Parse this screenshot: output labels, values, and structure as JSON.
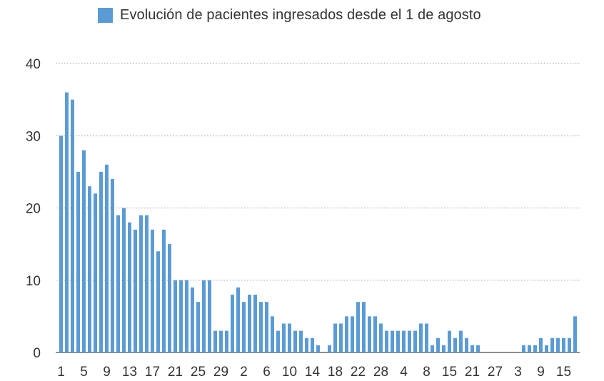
{
  "chart_data": {
    "type": "bar",
    "title": "",
    "xlabel": "",
    "ylabel": "",
    "ylim": [
      0,
      40
    ],
    "yticks": [
      0,
      10,
      20,
      30,
      40
    ],
    "grid": true,
    "legend_position": "top",
    "bar_color": "#5b9bd5",
    "series": [
      {
        "name": "Evolución de pacientes ingresados desde el 1 de agosto",
        "values": [
          30,
          36,
          35,
          25,
          28,
          23,
          22,
          25,
          26,
          24,
          19,
          20,
          18,
          17,
          19,
          19,
          17,
          14,
          17,
          15,
          10,
          10,
          10,
          9,
          7,
          10,
          10,
          3,
          3,
          3,
          8,
          9,
          7,
          8,
          8,
          7,
          7,
          5,
          3,
          4,
          4,
          3,
          3,
          2,
          2,
          1,
          0,
          1,
          4,
          4,
          5,
          5,
          7,
          7,
          5,
          5,
          4,
          3,
          3,
          3,
          3,
          3,
          3,
          4,
          4,
          1,
          2,
          1,
          3,
          2,
          3,
          2,
          1,
          1,
          0,
          0,
          0,
          0,
          0,
          0,
          0,
          1,
          1,
          1,
          2,
          1,
          2,
          2,
          2,
          2,
          5
        ]
      }
    ],
    "x_tick_every": 4,
    "x_tick_labels": [
      "1",
      "5",
      "9",
      "13",
      "17",
      "21",
      "25",
      "29",
      "2",
      "6",
      "10",
      "14",
      "18",
      "22",
      "28",
      "4",
      "8",
      "15",
      "21",
      "27",
      "3",
      "9",
      "15"
    ],
    "x_tick_positions": [
      0,
      4,
      8,
      12,
      16,
      20,
      24,
      28,
      32,
      36,
      40,
      44,
      48,
      52,
      56,
      60,
      64,
      68,
      72,
      76,
      80,
      84,
      88
    ]
  }
}
